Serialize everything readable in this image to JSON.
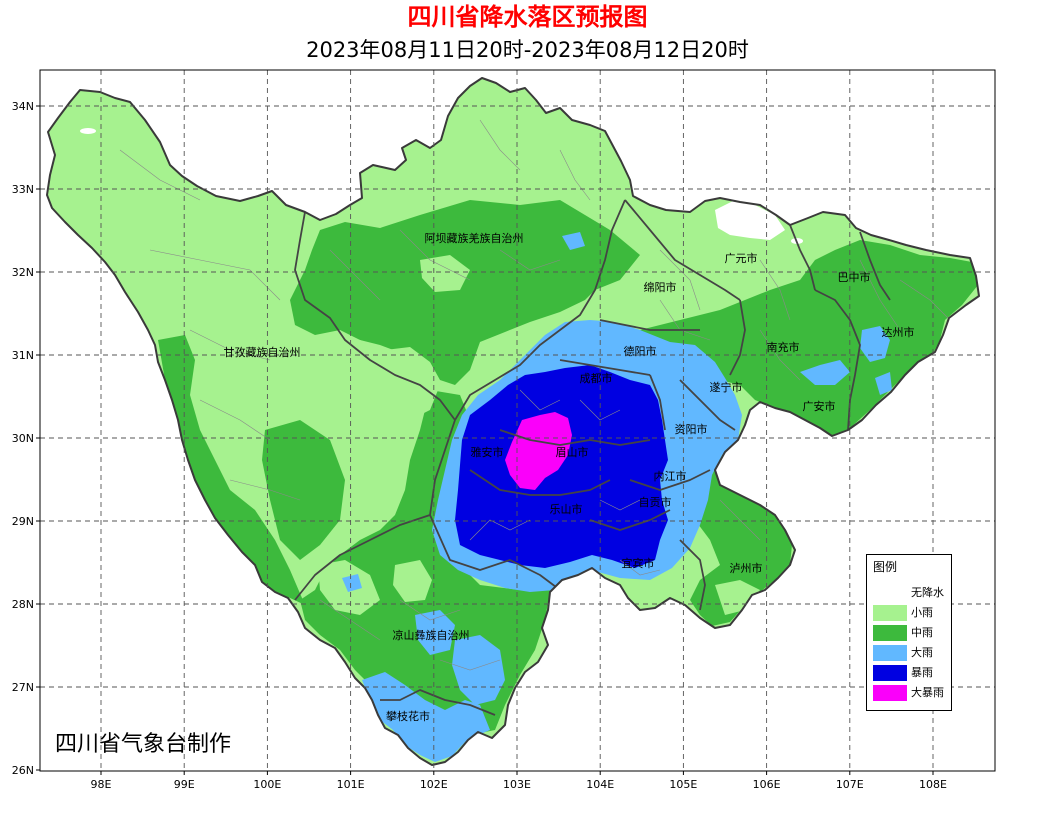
{
  "title": "四川省降水落区预报图",
  "subtitle": "2023年08月11日20时-2023年08月12日20时",
  "credit": "四川省气象台制作",
  "colors": {
    "title": "#ff0000",
    "boundary_prefecture": "#444444",
    "boundary_county": "#8a8a8a",
    "grid": "#555555"
  },
  "axes": {
    "lat_ticks": [
      "34N",
      "33N",
      "32N",
      "31N",
      "30N",
      "29N",
      "28N",
      "27N",
      "26N"
    ],
    "lon_ticks": [
      "98E",
      "99E",
      "100E",
      "101E",
      "102E",
      "103E",
      "104E",
      "105E",
      "106E",
      "107E",
      "108E"
    ]
  },
  "legend": {
    "title": "图例",
    "items": [
      {
        "label": "无降水",
        "color": "#ffffff"
      },
      {
        "label": "小雨",
        "color": "#a6f28f"
      },
      {
        "label": "中雨",
        "color": "#3dba3d"
      },
      {
        "label": "大雨",
        "color": "#61b8ff"
      },
      {
        "label": "暴雨",
        "color": "#0000e1"
      },
      {
        "label": "大暴雨",
        "color": "#fa00fa"
      }
    ]
  },
  "places": {
    "aba": "阿坝藏族羌族自治州",
    "ganzi": "甘孜藏族自治州",
    "liangshan": "凉山彝族自治州",
    "panzhihua": "攀枝花市",
    "guangyuan": "广元市",
    "bazhong": "巴中市",
    "mianyang": "绵阳市",
    "dazhou": "达州市",
    "nanchong": "南充市",
    "deyang": "德阳市",
    "suining": "遂宁市",
    "guangan": "广安市",
    "chengdu": "成都市",
    "ziyang": "资阳市",
    "yaan": "雅安市",
    "meishan": "眉山市",
    "neijiang": "内江市",
    "zigong": "自贡市",
    "leshan": "乐山市",
    "yibin": "宜宾市",
    "luzhou": "泸州市"
  }
}
